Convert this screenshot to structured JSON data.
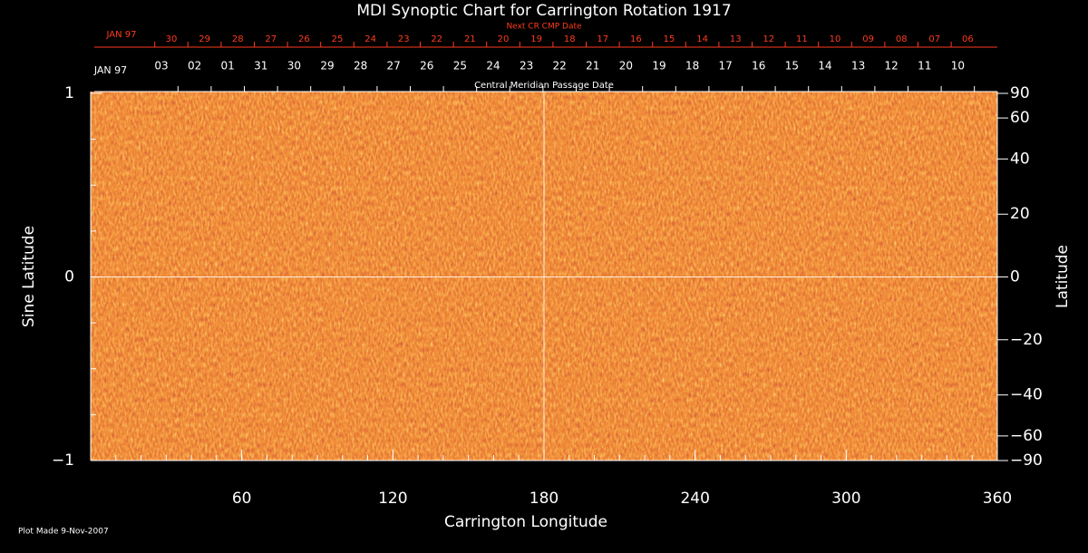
{
  "chart_data": {
    "type": "synoptic-map",
    "title": "MDI Synoptic Chart for Carrington Rotation 1917",
    "xlabel": "Carrington Longitude",
    "ylabel": "Sine Latitude",
    "y2label": "Latitude",
    "xlim": [
      0,
      360
    ],
    "xticks": [
      60,
      120,
      180,
      240,
      300,
      360
    ],
    "ylim": [
      -1,
      1
    ],
    "yticks": [
      {
        "value": -1,
        "label": "−1"
      },
      0,
      1
    ],
    "y2lim": [
      -90,
      90
    ],
    "y2_scale": "sine",
    "y2ticks": [
      90,
      60,
      40,
      20,
      0,
      {
        "value": -20,
        "label": "−20"
      },
      {
        "value": -40,
        "label": "−40"
      },
      {
        "value": -60,
        "label": "−60"
      },
      {
        "value": -90,
        "label": "−90"
      }
    ],
    "crosshair": {
      "x": 180,
      "y": 0
    },
    "cmp_axis": {
      "title": "Central Meridian Passage Date",
      "month_label": "JAN 97",
      "days": [
        "03",
        "02",
        "01",
        "31",
        "30",
        "29",
        "28",
        "27",
        "26",
        "25",
        "24",
        "23",
        "22",
        "21",
        "20",
        "19",
        "18",
        "17",
        "16",
        "15",
        "14",
        "13",
        "12",
        "11",
        "10"
      ]
    },
    "next_cr_axis": {
      "title": "Next CR CMP Date",
      "month_label": "JAN 97",
      "color": "#ff3c1e",
      "days": [
        "30",
        "29",
        "28",
        "27",
        "26",
        "25",
        "24",
        "23",
        "22",
        "21",
        "20",
        "19",
        "18",
        "17",
        "16",
        "15",
        "14",
        "13",
        "12",
        "11",
        "10",
        "09",
        "08",
        "07",
        "06"
      ]
    },
    "footer": "Plot Made  9-Nov-2007"
  }
}
